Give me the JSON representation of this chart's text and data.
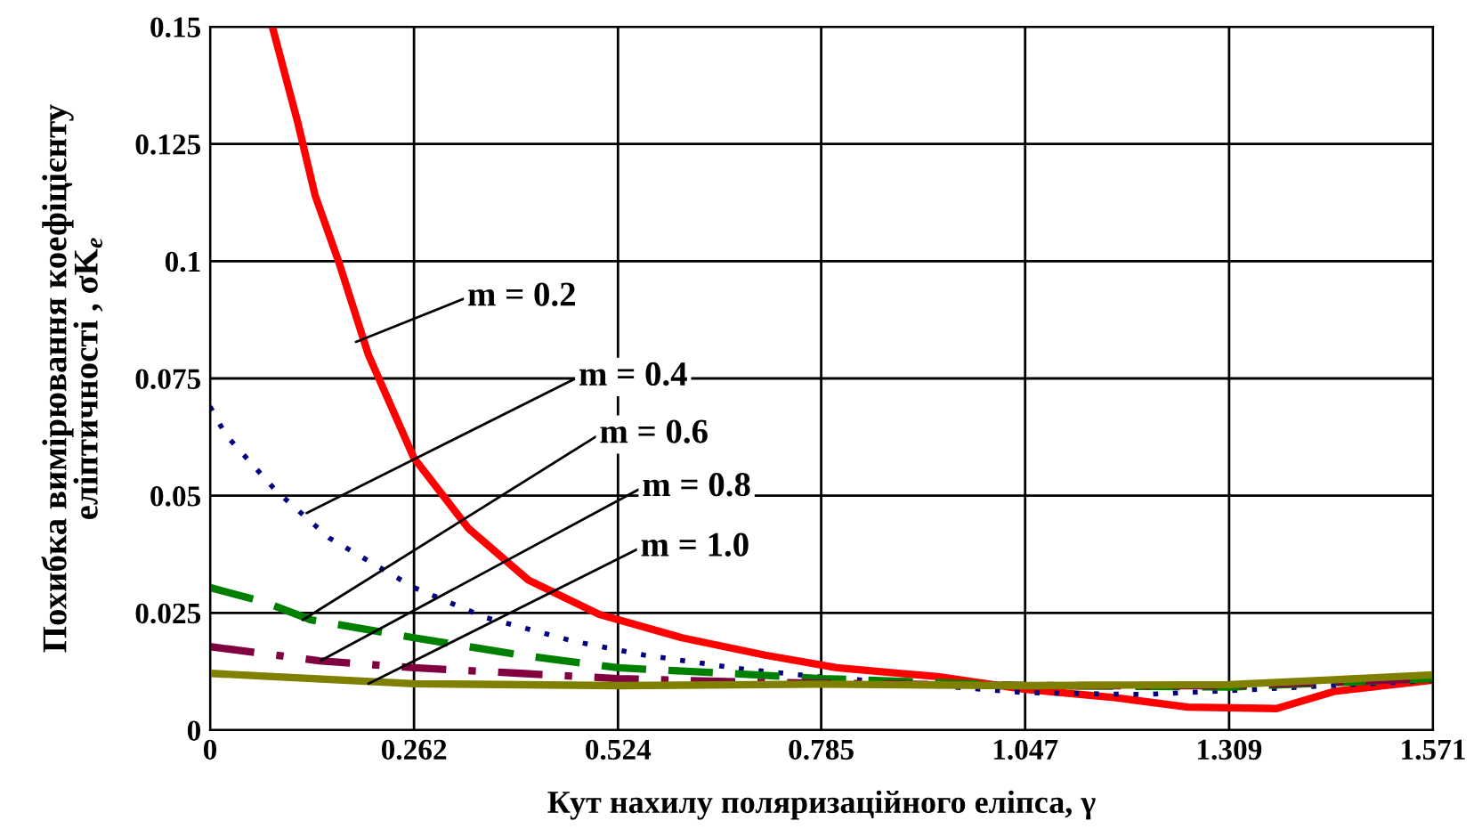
{
  "chart_data": {
    "type": "line",
    "xlabel": "Кут нахилу поляризаційного еліпса, γ",
    "ylabel": "Похибка вимірювання коефіцієнту\nеліптичності , σK$_{e}$",
    "xlim": [
      0,
      1.571
    ],
    "ylim": [
      0,
      0.15
    ],
    "xticks": [
      0,
      0.262,
      0.524,
      0.785,
      1.047,
      1.309,
      1.571
    ],
    "yticks": [
      0,
      0.025,
      0.05,
      0.075,
      0.1,
      0.125,
      0.15
    ],
    "grid": true,
    "legend": false,
    "series": [
      {
        "color": "#ff0000",
        "line_style": "solid",
        "x": [
          0.08,
          0.112,
          0.135,
          0.165,
          0.2035,
          0.262,
          0.332,
          0.409,
          0.5,
          0.606,
          0.713,
          0.805,
          0.935,
          1.047,
          1.164,
          1.256,
          1.37,
          1.445,
          1.567
        ],
        "values": [
          0.15,
          0.13,
          0.114,
          0.1,
          0.08,
          0.058,
          0.043,
          0.032,
          0.0247,
          0.0197,
          0.016,
          0.0133,
          0.0114,
          0.0087,
          0.0069,
          0.0049,
          0.0046,
          0.0083,
          0.0106
        ]
      },
      {
        "color": "#000080",
        "line_style": "dotted",
        "x": [
          0,
          0.02,
          0.085,
          0.153,
          0.262,
          0.354,
          0.466,
          0.558,
          0.69,
          0.782,
          1.047,
          1.2,
          1.309,
          1.571
        ],
        "values": [
          0.069,
          0.063,
          0.051,
          0.041,
          0.0304,
          0.024,
          0.019,
          0.016,
          0.0129,
          0.0114,
          0.008,
          0.0076,
          0.0084,
          0.0106
        ]
      },
      {
        "color": "#008000",
        "line_style": "dashed",
        "x": [
          0,
          0.07,
          0.13,
          0.262,
          0.4,
          0.524,
          0.7,
          0.785,
          1.047,
          1.309,
          1.571
        ],
        "values": [
          0.0304,
          0.0273,
          0.0235,
          0.0197,
          0.016,
          0.0133,
          0.0118,
          0.011,
          0.0095,
          0.0092,
          0.011
        ]
      },
      {
        "color": "#800040",
        "line_style": "dashdot",
        "x": [
          0,
          0.14,
          0.262,
          0.4,
          0.524,
          0.7,
          1.047,
          1.309,
          1.571
        ],
        "values": [
          0.0178,
          0.0148,
          0.0133,
          0.0121,
          0.011,
          0.0102,
          0.0095,
          0.0095,
          0.011
        ]
      },
      {
        "color": "#808000",
        "line_style": "solid",
        "x": [
          0,
          0.262,
          0.524,
          0.785,
          1.047,
          1.309,
          1.45,
          1.571
        ],
        "values": [
          0.0121,
          0.0099,
          0.0095,
          0.0098,
          0.0095,
          0.0097,
          0.0108,
          0.0118
        ]
      }
    ],
    "annotations": [
      {
        "text": "m = 0.2",
        "x": 0.1875,
        "y": 0.0828
      },
      {
        "text": "m = 0.4",
        "x": 0.124,
        "y": 0.0463
      },
      {
        "text": "m = 0.6",
        "x": 0.119,
        "y": 0.0235
      },
      {
        "text": "m = 0.8",
        "x": 0.142,
        "y": 0.0148
      },
      {
        "text": "m = 1.0",
        "x": 0.2035,
        "y": 0.0099
      }
    ]
  }
}
